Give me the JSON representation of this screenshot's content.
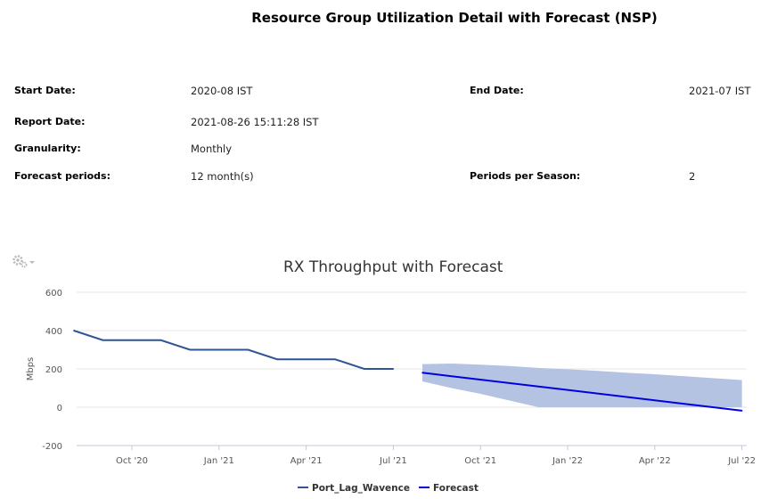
{
  "report": {
    "title": "Resource Group Utilization Detail with Forecast (NSP)",
    "start_date_label": "Start Date:",
    "start_date": "2020-08 IST",
    "end_date_label": "End Date:",
    "end_date": "2021-07 IST",
    "report_date_label": "Report Date:",
    "report_date": "2021-08-26 15:11:28 IST",
    "granularity_label": "Granularity:",
    "granularity": "Monthly",
    "forecast_periods_label": "Forecast periods:",
    "forecast_periods": "12 month(s)",
    "periods_per_season_label": "Periods per Season:",
    "periods_per_season": "2"
  },
  "chart_data": {
    "type": "line",
    "title": "RX Throughput with Forecast",
    "ylabel": "Mbps",
    "xlabel": "",
    "ylim": [
      -200,
      600
    ],
    "yticks": [
      -200,
      0,
      200,
      400,
      600
    ],
    "xtick_labels": [
      "Oct '20",
      "Jan '21",
      "Apr '21",
      "Jul '21",
      "Oct '21",
      "Jan '22",
      "Apr '22",
      "Jul '22"
    ],
    "xtick_dates": [
      "2020-10",
      "2021-01",
      "2021-04",
      "2021-07",
      "2021-10",
      "2022-01",
      "2022-04",
      "2022-07"
    ],
    "grid": true,
    "legend_position": "bottom",
    "colors": {
      "actual": "#2f5597",
      "forecast": "#0000e0",
      "band": "#b4c3e1"
    },
    "series": [
      {
        "name": "Port_Lag_Wavence",
        "x": [
          "2020-08",
          "2020-09",
          "2020-10",
          "2020-11",
          "2020-12",
          "2021-01",
          "2021-02",
          "2021-03",
          "2021-04",
          "2021-05",
          "2021-06",
          "2021-07"
        ],
        "values": [
          400,
          350,
          350,
          350,
          300,
          300,
          300,
          250,
          250,
          250,
          200,
          200
        ]
      },
      {
        "name": "Forecast",
        "x": [
          "2021-08",
          "2022-07"
        ],
        "values": [
          180,
          -18
        ]
      }
    ],
    "forecast_band": {
      "x": [
        "2021-08",
        "2021-09",
        "2021-10",
        "2021-11",
        "2021-12",
        "2022-01",
        "2022-02",
        "2022-03",
        "2022-04",
        "2022-05",
        "2022-06",
        "2022-07"
      ],
      "upper": [
        225,
        228,
        222,
        215,
        205,
        198,
        190,
        180,
        172,
        162,
        152,
        142
      ],
      "lower": [
        135,
        100,
        70,
        35,
        0,
        0,
        0,
        0,
        0,
        0,
        0,
        0
      ]
    }
  }
}
